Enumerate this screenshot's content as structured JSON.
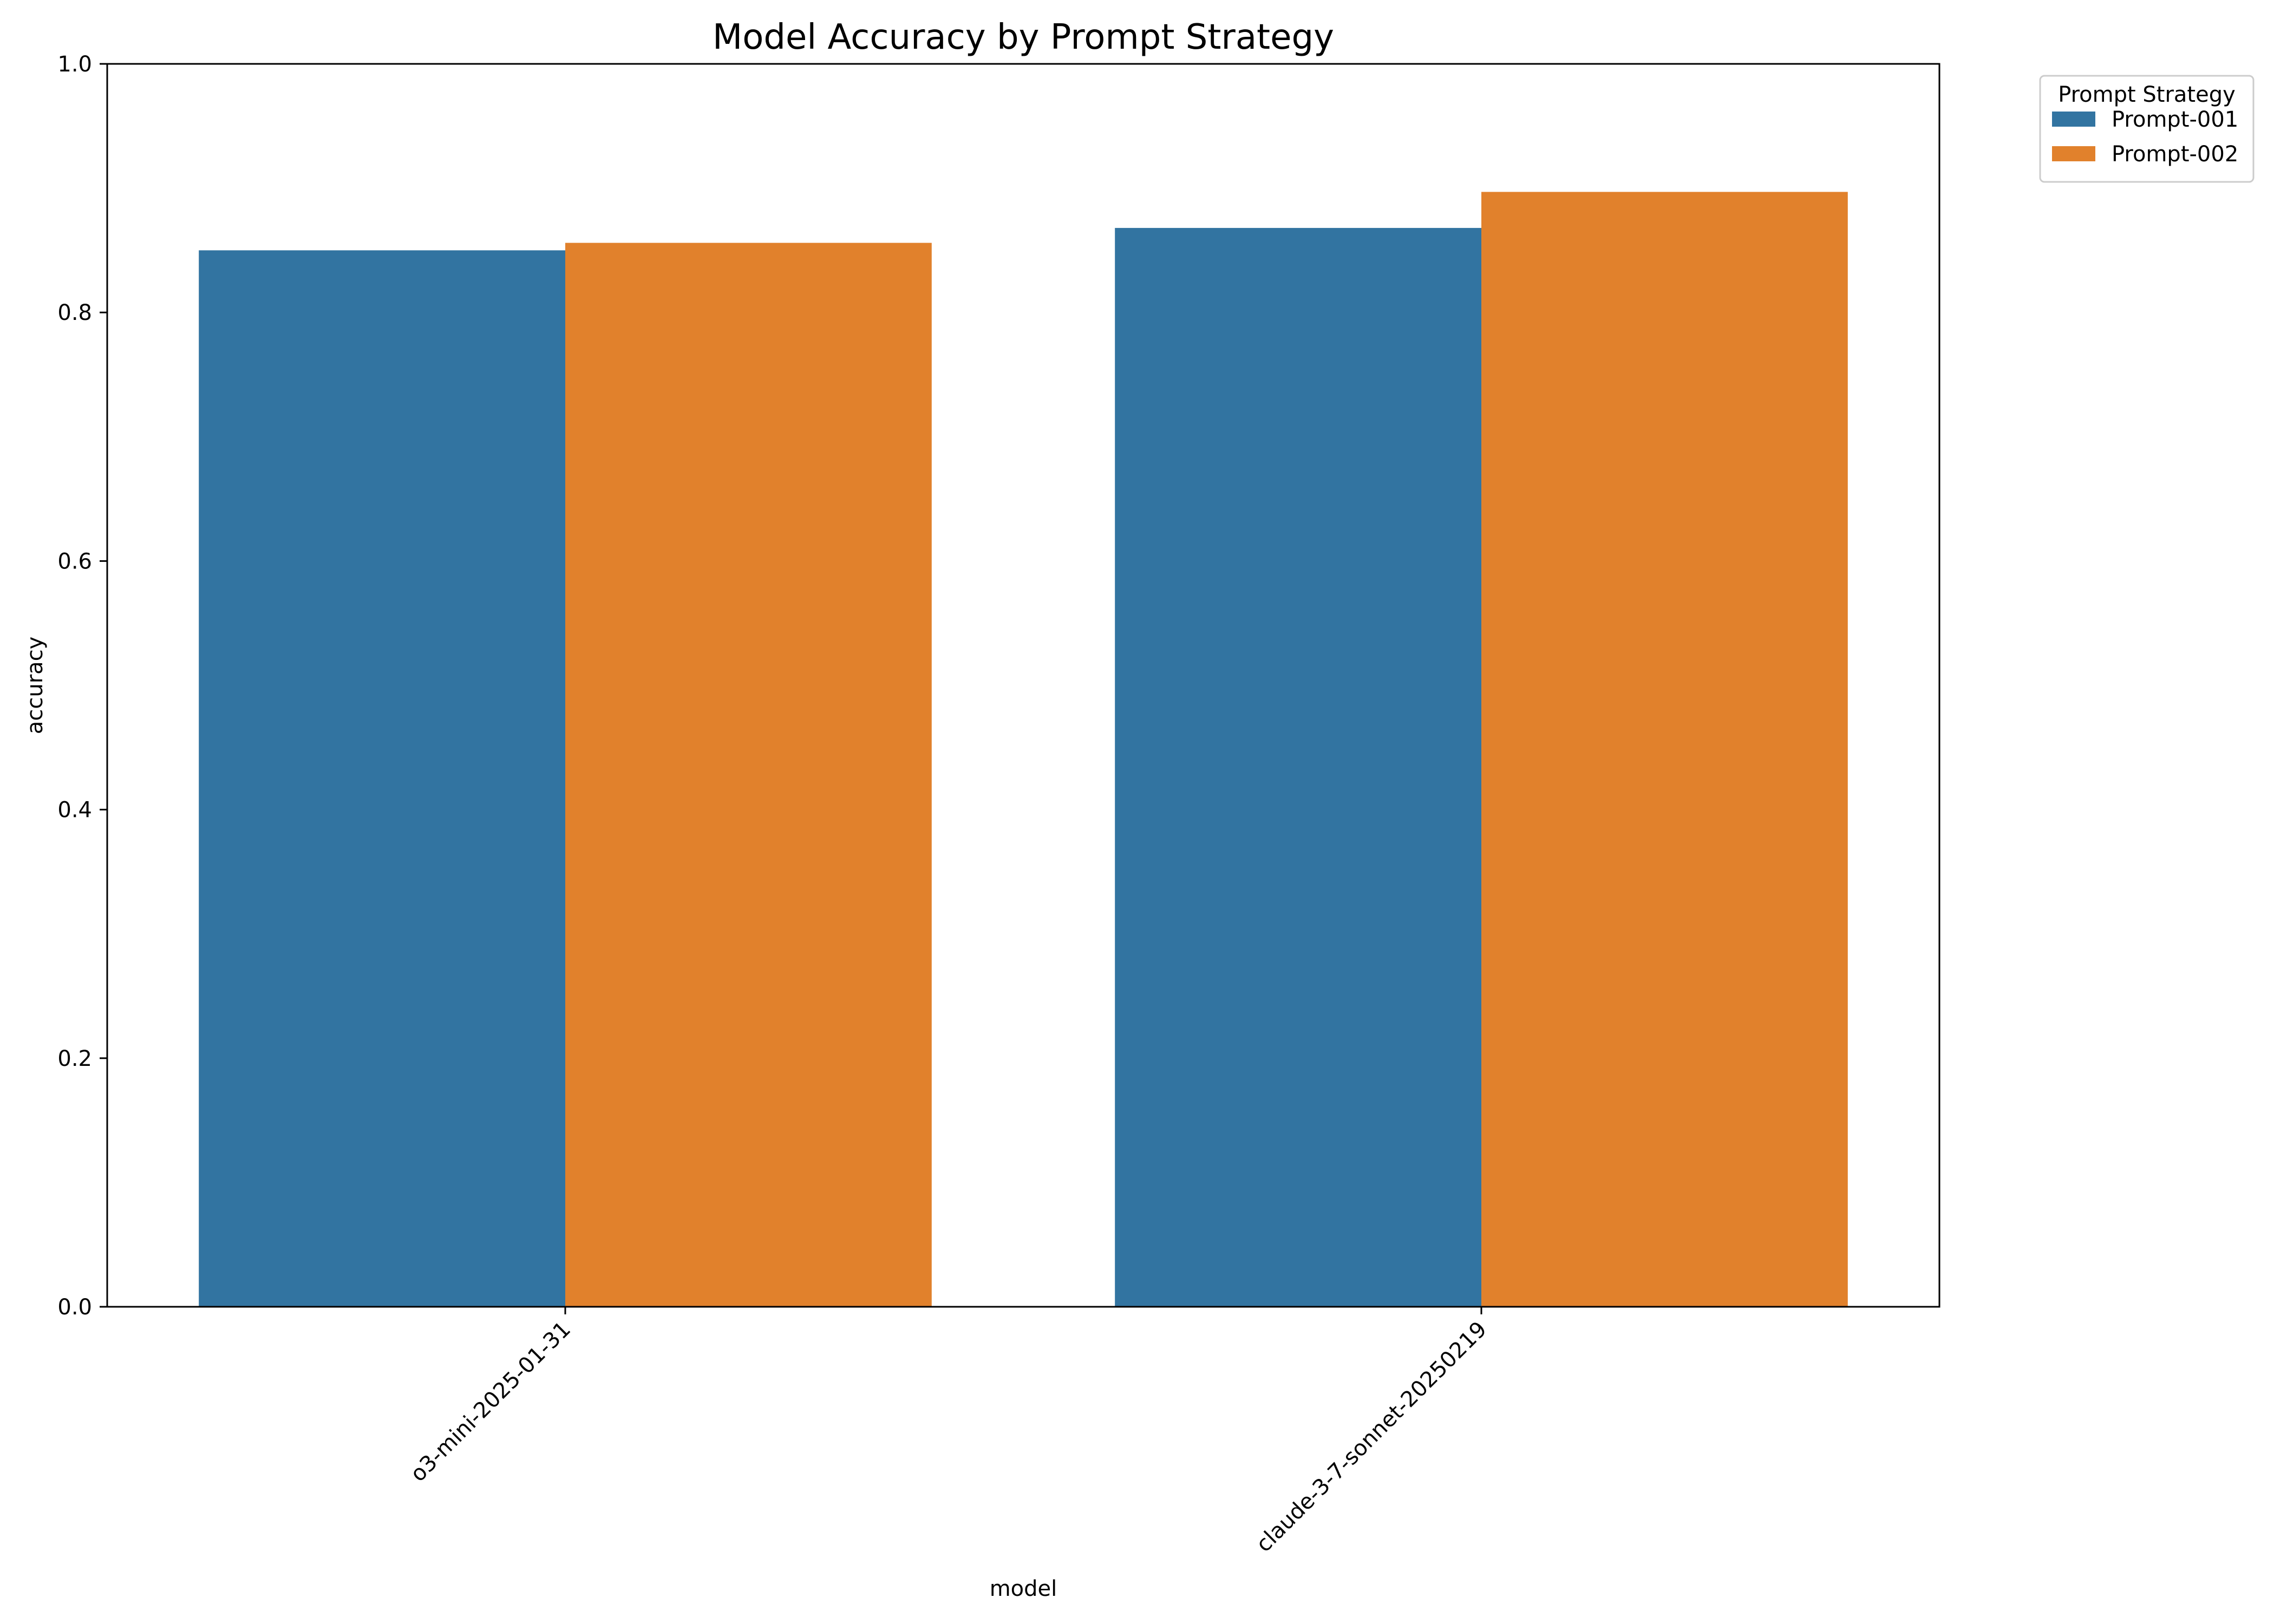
{
  "chart_data": {
    "type": "bar",
    "title": "Model Accuracy by Prompt Strategy",
    "xlabel": "model",
    "ylabel": "accuracy",
    "categories": [
      "o3-mini-2025-01-31",
      "claude-3-7-sonnet-20250219"
    ],
    "series": [
      {
        "name": "Prompt-001",
        "color": "#3274a1",
        "values": [
          0.85,
          0.868
        ]
      },
      {
        "name": "Prompt-002",
        "color": "#e1812c",
        "values": [
          0.856,
          0.897
        ]
      }
    ],
    "ylim": [
      0,
      1.0
    ],
    "yticks": [
      "0.0",
      "0.2",
      "0.4",
      "0.6",
      "0.8",
      "1.0"
    ],
    "grid": false,
    "legend": {
      "title": "Prompt Strategy",
      "placement": "outside-top-right"
    }
  }
}
